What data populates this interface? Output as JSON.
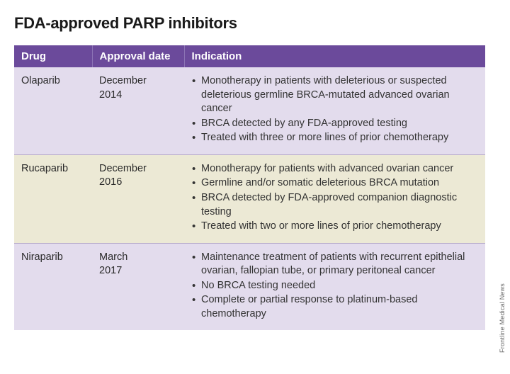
{
  "title": "FDA-approved PARP inhibitors",
  "columns": [
    "Drug",
    "Approval date",
    "Indication"
  ],
  "header_bg": "#6b4a9b",
  "header_text_color": "#ffffff",
  "row_colors": {
    "lavender": "#e3dced",
    "cream": "#ece9d5"
  },
  "border_color": "#b5a8c9",
  "rows": [
    {
      "drug": "Olaparib",
      "date_line1": "December",
      "date_line2": "2014",
      "color_key": "lavender",
      "indications": [
        "Monotherapy in patients with deleterious or suspected deleterious germline BRCA-mutated advanced ovarian cancer",
        "BRCA detected by any FDA-approved testing",
        "Treated with three or more lines of prior chemotherapy"
      ]
    },
    {
      "drug": "Rucaparib",
      "date_line1": "December",
      "date_line2": "2016",
      "color_key": "cream",
      "indications": [
        "Monotherapy for patients with advanced ovarian cancer",
        "Germline and/or somatic deleterious BRCA mutation",
        "BRCA detected by FDA-approved companion diagnostic testing",
        "Treated with two or more lines of prior chemotherapy"
      ]
    },
    {
      "drug": "Niraparib",
      "date_line1": "March",
      "date_line2": "2017",
      "color_key": "lavender",
      "indications": [
        "Maintenance treatment of patients with recurrent epithelial ovarian, fallopian tube, or primary peritoneal cancer",
        "No BRCA testing needed",
        "Complete or partial response to platinum-based chemotherapy"
      ]
    }
  ],
  "source_label": "Frontline Medical News",
  "fonts": {
    "title_size_pt": 22,
    "body_size_pt": 14.5,
    "header_size_pt": 15
  }
}
